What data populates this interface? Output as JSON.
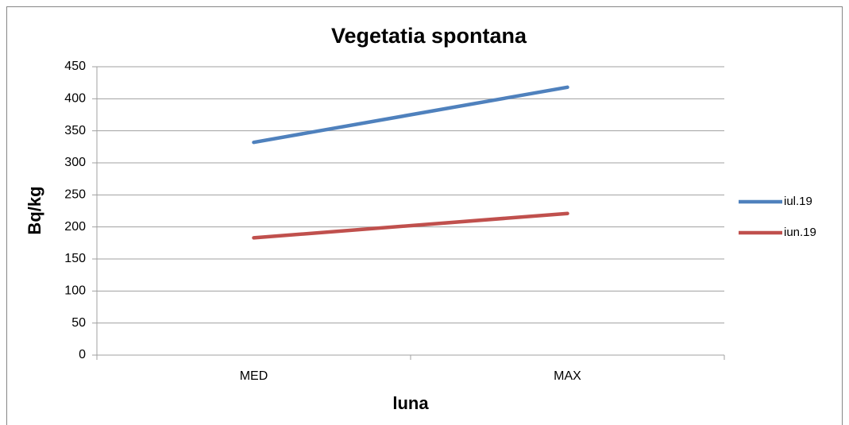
{
  "chart_data": {
    "type": "line",
    "title": "Vegetatia spontana",
    "x_label": "luna",
    "y_label": "Bq/kg",
    "categories": [
      "MED",
      "MAX"
    ],
    "series": [
      {
        "name": "iul.19",
        "color": "#4f81bd",
        "values": [
          332,
          418
        ]
      },
      {
        "name": "iun.19",
        "color": "#c0504d",
        "values": [
          183,
          221
        ]
      }
    ],
    "ylim": [
      0,
      450
    ],
    "yticks": [
      0,
      50,
      100,
      150,
      200,
      250,
      300,
      350,
      400,
      450
    ],
    "grid": true,
    "legend": "right"
  }
}
